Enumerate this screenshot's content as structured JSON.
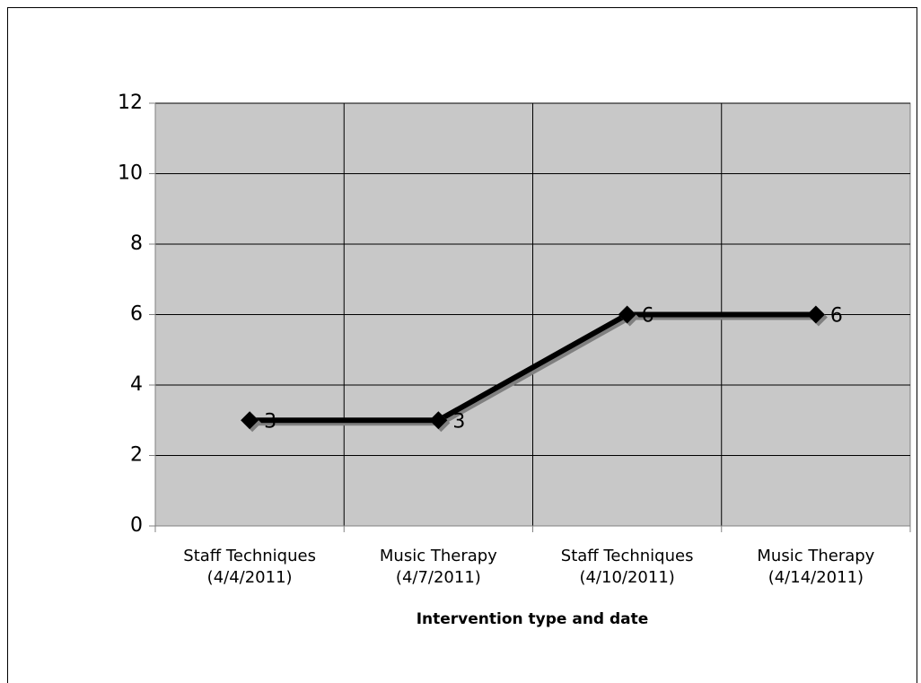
{
  "chart_data": {
    "type": "line",
    "x_label": "Intervention type and date",
    "categories": [
      [
        "Staff Techniques",
        "(4/4/2011)"
      ],
      [
        "Music Therapy",
        "(4/7/2011)"
      ],
      [
        "Staff Techniques",
        "(4/10/2011)"
      ],
      [
        "Music Therapy",
        "(4/14/2011)"
      ]
    ],
    "series": [
      {
        "color": "#000000",
        "values": [
          3,
          3,
          6,
          6
        ]
      }
    ],
    "ylim": [
      0,
      12
    ],
    "yticks": [
      0,
      2,
      4,
      6,
      8,
      10,
      12
    ],
    "grid": true
  }
}
